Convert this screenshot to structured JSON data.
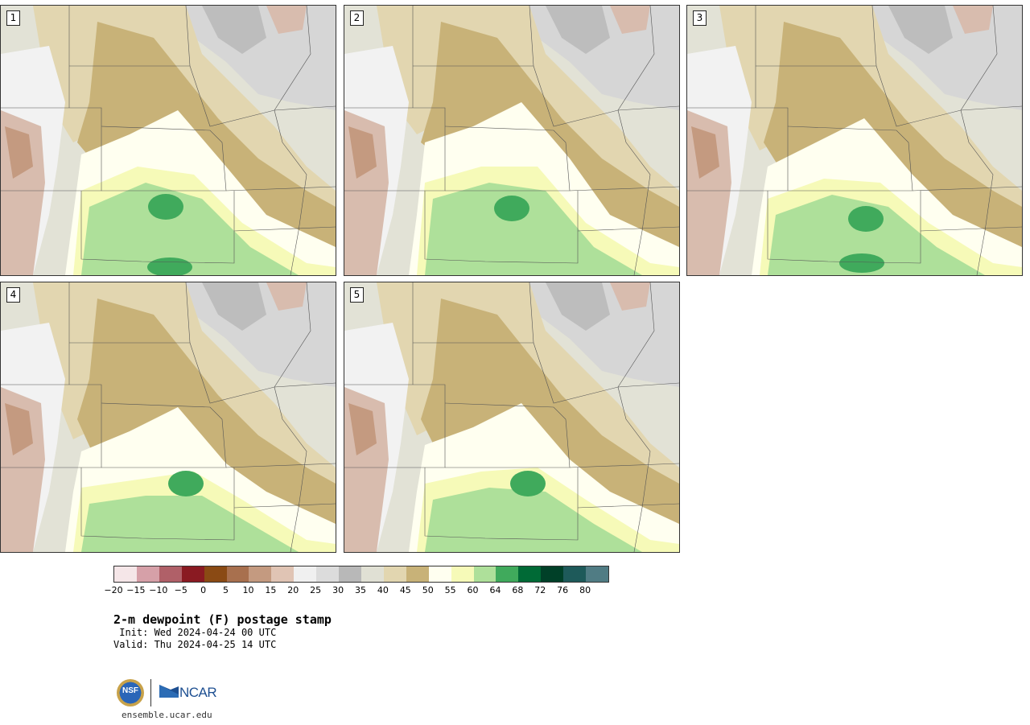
{
  "panels": [
    {
      "label": "1"
    },
    {
      "label": "2"
    },
    {
      "label": "3"
    },
    {
      "label": "4"
    },
    {
      "label": "5"
    }
  ],
  "colorbar": {
    "colors": [
      "#f5e6e8",
      "#d6a0a8",
      "#b06068",
      "#8a1a22",
      "#8a4a14",
      "#a8704e",
      "#c49a80",
      "#e0c4b4",
      "#f0f0f0",
      "#dcdcdc",
      "#b8b8b8",
      "#e0e0d4",
      "#e2d6b0",
      "#c8b278",
      "#fffff0",
      "#f6fab8",
      "#aee09a",
      "#40aa5c",
      "#006a36",
      "#004028",
      "#1e5a5a",
      "#507c84"
    ],
    "ticks": [
      "−20",
      "−15",
      "−10",
      "−5",
      "0",
      "5",
      "10",
      "15",
      "20",
      "25",
      "30",
      "35",
      "40",
      "45",
      "50",
      "55",
      "60",
      "64",
      "68",
      "72",
      "76",
      "80"
    ]
  },
  "title": "2-m dewpoint (F) postage stamp",
  "init": " Init: Wed 2024-04-24 00 UTC",
  "valid": "Valid: Thu 2024-04-25 14 UTC",
  "logos": {
    "nsf": "NSF",
    "ncar": "NCAR"
  },
  "site": "ensemble.ucar.edu"
}
